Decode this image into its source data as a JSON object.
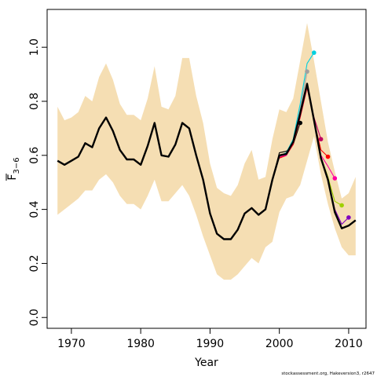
{
  "chart_data": {
    "type": "line",
    "xlabel": "Year",
    "ylabel": "F̄3−6",
    "ylabel_main": "F",
    "ylabel_sub": "3−6",
    "credit": "stockassessment.org, Hakeversion3, r2647",
    "xlim": [
      1966.5,
      2012.5
    ],
    "ylim": [
      -0.04,
      1.14
    ],
    "xticks": [
      1970,
      1980,
      1990,
      2000,
      2010
    ],
    "yticks": [
      0.0,
      0.2,
      0.4,
      0.6,
      0.8,
      1.0
    ],
    "ytick_labels": [
      "0.0",
      "0.2",
      "0.4",
      "0.6",
      "0.8",
      "1.0"
    ],
    "grid": false,
    "colors": {
      "band": "#f5deb3",
      "main": "#000000"
    },
    "band": {
      "years": [
        1968,
        1969,
        1970,
        1971,
        1972,
        1973,
        1974,
        1975,
        1976,
        1977,
        1978,
        1979,
        1980,
        1981,
        1982,
        1983,
        1984,
        1985,
        1986,
        1987,
        1988,
        1989,
        1990,
        1991,
        1992,
        1993,
        1994,
        1995,
        1996,
        1997,
        1998,
        1999,
        2000,
        2001,
        2002,
        2003,
        2004,
        2005,
        2006,
        2007,
        2008,
        2009,
        2010,
        2011
      ],
      "upper": [
        0.78,
        0.73,
        0.74,
        0.76,
        0.82,
        0.8,
        0.89,
        0.94,
        0.88,
        0.79,
        0.75,
        0.75,
        0.73,
        0.81,
        0.93,
        0.78,
        0.77,
        0.82,
        0.96,
        0.96,
        0.82,
        0.72,
        0.57,
        0.48,
        0.46,
        0.45,
        0.49,
        0.57,
        0.62,
        0.51,
        0.52,
        0.66,
        0.77,
        0.76,
        0.81,
        0.95,
        1.09,
        0.95,
        0.8,
        0.65,
        0.54,
        0.44,
        0.46,
        0.52
      ],
      "lower": [
        0.38,
        0.4,
        0.42,
        0.44,
        0.47,
        0.47,
        0.51,
        0.53,
        0.5,
        0.45,
        0.42,
        0.42,
        0.4,
        0.45,
        0.51,
        0.43,
        0.43,
        0.46,
        0.49,
        0.45,
        0.38,
        0.3,
        0.23,
        0.16,
        0.14,
        0.14,
        0.16,
        0.19,
        0.22,
        0.2,
        0.26,
        0.28,
        0.39,
        0.44,
        0.45,
        0.49,
        0.58,
        0.67,
        0.53,
        0.42,
        0.33,
        0.26,
        0.23,
        0.23
      ]
    },
    "series": [
      {
        "role": "final",
        "color": "#000000",
        "x": [
          1968,
          1969,
          1970,
          1971,
          1972,
          1973,
          1974,
          1975,
          1976,
          1977,
          1978,
          1979,
          1980,
          1981,
          1982,
          1983,
          1984,
          1985,
          1986,
          1987,
          1988,
          1989,
          1990,
          1991,
          1992,
          1993,
          1994,
          1995,
          1996,
          1997,
          1998,
          1999,
          2000,
          2001,
          2002,
          2003,
          2004,
          2005,
          2006,
          2007,
          2008,
          2009,
          2010,
          2011
        ],
        "y": [
          0.58,
          0.565,
          0.58,
          0.595,
          0.645,
          0.63,
          0.7,
          0.74,
          0.69,
          0.62,
          0.585,
          0.585,
          0.565,
          0.635,
          0.72,
          0.6,
          0.595,
          0.64,
          0.72,
          0.7,
          0.6,
          0.51,
          0.385,
          0.31,
          0.29,
          0.29,
          0.325,
          0.385,
          0.405,
          0.38,
          0.4,
          0.51,
          0.6,
          0.605,
          0.65,
          0.755,
          0.865,
          0.73,
          0.59,
          0.51,
          0.39,
          0.33,
          0.34,
          0.36
        ]
      },
      {
        "role": "retro-2003",
        "color": "#000000",
        "endpoint": true,
        "x": [
          1999,
          2000,
          2001,
          2002,
          2003
        ],
        "y": [
          0.51,
          0.61,
          0.615,
          0.64,
          0.72
        ]
      },
      {
        "role": "retro-2004",
        "color": "#a0a0a0",
        "endpoint": true,
        "x": [
          2000,
          2001,
          2002,
          2003,
          2004
        ],
        "y": [
          0.6,
          0.61,
          0.655,
          0.77,
          0.91
        ]
      },
      {
        "role": "retro-2005",
        "color": "#00d0e0",
        "endpoint": true,
        "x": [
          2000,
          2001,
          2002,
          2003,
          2004,
          2005
        ],
        "y": [
          0.595,
          0.61,
          0.66,
          0.79,
          0.94,
          0.98
        ]
      },
      {
        "role": "retro-2006",
        "color": "#c00060",
        "endpoint": true,
        "x": [
          2000,
          2001,
          2002,
          2003,
          2004,
          2005,
          2006
        ],
        "y": [
          0.59,
          0.6,
          0.645,
          0.75,
          0.855,
          0.74,
          0.66
        ]
      },
      {
        "role": "retro-2007",
        "color": "#ff0000",
        "endpoint": true,
        "x": [
          2000,
          2001,
          2002,
          2003,
          2004,
          2005,
          2006,
          2007
        ],
        "y": [
          0.59,
          0.6,
          0.64,
          0.74,
          0.85,
          0.73,
          0.62,
          0.595
        ]
      },
      {
        "role": "retro-2008",
        "color": "#ff00a0",
        "endpoint": true,
        "x": [
          2000,
          2001,
          2002,
          2003,
          2004,
          2005,
          2006,
          2007,
          2008
        ],
        "y": [
          0.595,
          0.6,
          0.645,
          0.745,
          0.855,
          0.73,
          0.6,
          0.56,
          0.515
        ]
      },
      {
        "role": "retro-2009",
        "color": "#a0d000",
        "endpoint": true,
        "x": [
          2000,
          2001,
          2002,
          2003,
          2004,
          2005,
          2006,
          2007,
          2008,
          2009
        ],
        "y": [
          0.6,
          0.605,
          0.65,
          0.75,
          0.86,
          0.735,
          0.595,
          0.52,
          0.43,
          0.415
        ]
      },
      {
        "role": "retro-2010",
        "color": "#8000c0",
        "endpoint": true,
        "x": [
          2000,
          2001,
          2002,
          2003,
          2004,
          2005,
          2006,
          2007,
          2008,
          2009,
          2010
        ],
        "y": [
          0.6,
          0.605,
          0.65,
          0.752,
          0.862,
          0.732,
          0.59,
          0.51,
          0.4,
          0.345,
          0.37
        ]
      }
    ]
  }
}
